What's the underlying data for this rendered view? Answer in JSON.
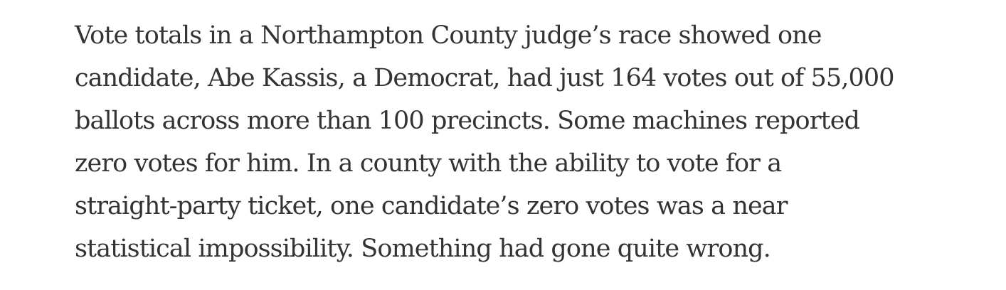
{
  "article": {
    "paragraph_lines": [
      "Vote totals in a Northampton County judge’s race showed one",
      "candidate, Abe Kassis, a Democrat, had just 164 votes out of 55,000",
      "ballots across more than 100 precincts. Some machines reported",
      "zero votes for him. In a county with the ability to vote for a",
      "straight-party ticket, one candidate’s zero votes was a near",
      "statistical impossibility. Something had gone quite wrong."
    ]
  }
}
